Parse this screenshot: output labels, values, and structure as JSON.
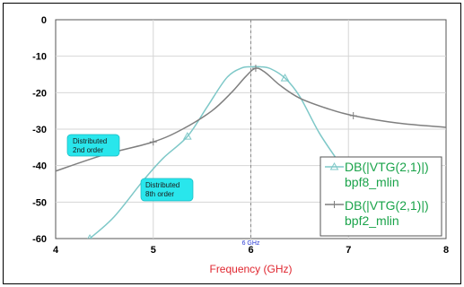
{
  "chart_data": {
    "type": "line",
    "title": "",
    "xlabel": "Frequency (GHz)",
    "ylabel": "",
    "xlim": [
      4,
      8
    ],
    "ylim": [
      -60,
      0
    ],
    "xticks": [
      "4",
      "5",
      "6",
      "7",
      "8"
    ],
    "yticks": [
      "0",
      "-10",
      "-20",
      "-30",
      "-40",
      "-50",
      "-60"
    ],
    "grid": true,
    "marker": {
      "x": 6.0,
      "label": "6 GHz"
    },
    "legend_position": "bottom-right",
    "series": [
      {
        "name": "DB(|VTG(2,1)|) bpf8_mlin",
        "legend_line1": "DB(|VTG(2,1)|)",
        "legend_line2": "bpf8_mlin",
        "color": "#7ec8c8",
        "marker_symbol": "triangle",
        "x": [
          4.35,
          4.6,
          4.9,
          5.1,
          5.35,
          5.55,
          5.75,
          5.9,
          6.0,
          6.1,
          6.2,
          6.35,
          6.5,
          6.7,
          6.9
        ],
        "y": [
          -60,
          -54,
          -44,
          -38,
          -32,
          -24,
          -16,
          -13.3,
          -12.9,
          -12.9,
          -13.4,
          -16,
          -21,
          -31,
          -39
        ],
        "marker_x": [
          4.35,
          5.35,
          6.35
        ]
      },
      {
        "name": "DB(|VTG(2,1)|) bpf2_mlin",
        "legend_line1": "DB(|VTG(2,1)|)",
        "legend_line2": "bpf2_mlin",
        "color": "#7f7f7f",
        "marker_symbol": "plus",
        "x": [
          4.0,
          4.5,
          5.0,
          5.3,
          5.6,
          5.8,
          5.95,
          6.05,
          6.15,
          6.3,
          6.5,
          6.8,
          7.05,
          7.5,
          8.0
        ],
        "y": [
          -41.5,
          -37,
          -33.5,
          -30,
          -25,
          -20,
          -15.5,
          -13.3,
          -14.5,
          -18,
          -21.5,
          -24.5,
          -26.3,
          -28.3,
          -29.5
        ],
        "marker_x": [
          5.0,
          6.05,
          7.05
        ]
      }
    ],
    "annotations": [
      {
        "line1": "Distributed",
        "line2": "2nd order"
      },
      {
        "line1": "Distributed",
        "line2": "8th order"
      }
    ]
  }
}
